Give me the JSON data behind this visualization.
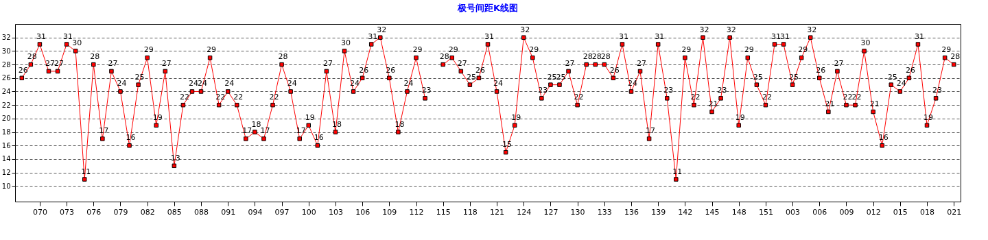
{
  "chart_data": {
    "type": "line",
    "title": "极号间距K线图",
    "categories": [
      null,
      null,
      "070",
      null,
      null,
      "073",
      null,
      null,
      "076",
      null,
      null,
      "079",
      null,
      null,
      "082",
      null,
      null,
      "085",
      null,
      null,
      "088",
      null,
      null,
      "091",
      null,
      null,
      "094",
      null,
      null,
      "097",
      null,
      null,
      "100",
      null,
      null,
      "103",
      null,
      null,
      "106",
      null,
      null,
      "109",
      null,
      null,
      "112",
      null,
      null,
      "115",
      null,
      null,
      "118",
      null,
      null,
      "121",
      null,
      null,
      "124",
      null,
      null,
      "127",
      null,
      null,
      "130",
      null,
      null,
      "133",
      null,
      null,
      "136",
      null,
      null,
      "139",
      null,
      null,
      "142",
      null,
      null,
      "145",
      null,
      null,
      "148",
      null,
      null,
      "151",
      null,
      null,
      "003",
      null,
      null,
      "006",
      null,
      null,
      "009",
      null,
      null,
      "012",
      null,
      null,
      "015",
      null,
      null,
      "018",
      null,
      null,
      "021"
    ],
    "series": [
      {
        "color": "#ff0000",
        "values": [
          26,
          28,
          31,
          27,
          27,
          31,
          30,
          11,
          28,
          17,
          27,
          24,
          16,
          25,
          29,
          19,
          27,
          13,
          22,
          24,
          24,
          29,
          22,
          24,
          22,
          17,
          18,
          17,
          22,
          28,
          24,
          17,
          19,
          16,
          27,
          18,
          30,
          24,
          26,
          31,
          32,
          26,
          18,
          24,
          29,
          23,
          null,
          28,
          29,
          27,
          25,
          26,
          31,
          24,
          15,
          19,
          32,
          29,
          23,
          25,
          25,
          27,
          22,
          28,
          28,
          28,
          26,
          31,
          24,
          27,
          17,
          31,
          23,
          11,
          29,
          22,
          32,
          21,
          23,
          32,
          19,
          29,
          25,
          22,
          31,
          31,
          25,
          29,
          32,
          26,
          21,
          27,
          22,
          22,
          30,
          21,
          16,
          25,
          24,
          26,
          31,
          19,
          23,
          29,
          28
        ]
      }
    ],
    "ylim": [
      7.7,
      34
    ],
    "yticks": [
      10,
      12,
      14,
      16,
      18,
      20,
      22,
      24,
      26,
      28,
      30,
      32
    ],
    "grid": "y",
    "marker": "square",
    "line_style": "solid",
    "data_labels": true
  }
}
